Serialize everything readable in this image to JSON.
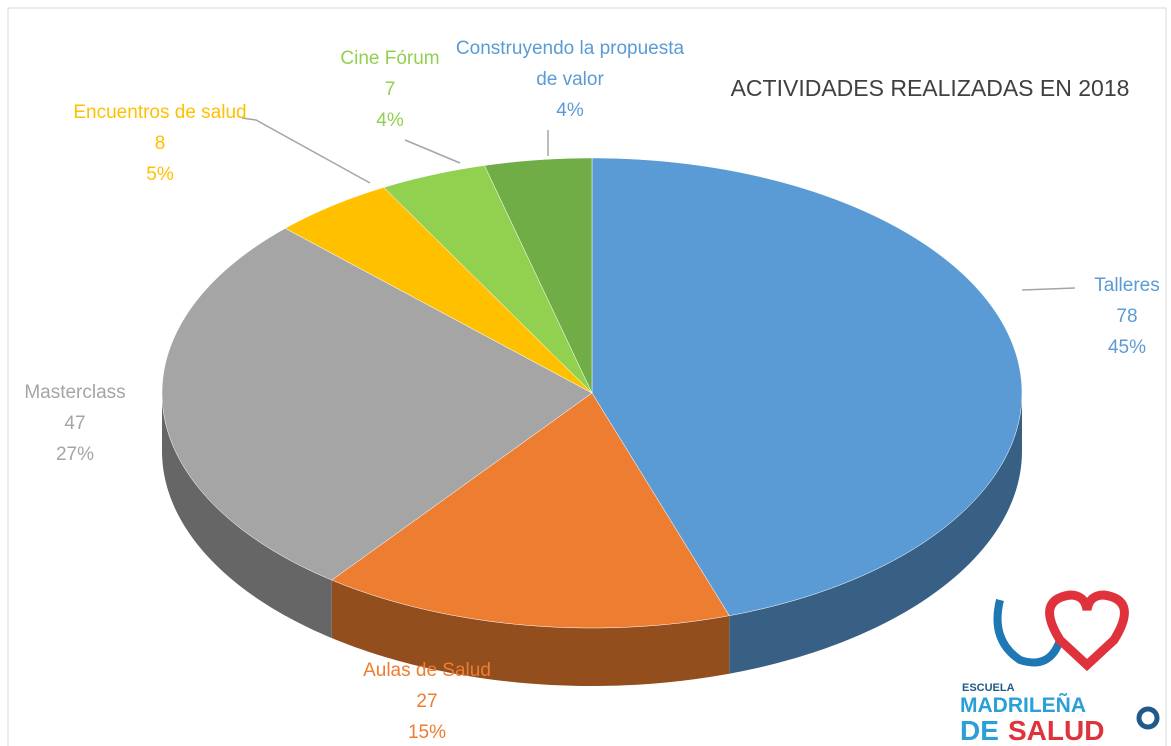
{
  "chart_data": {
    "type": "pie3d",
    "title": "ACTIVIDADES REALIZADAS EN 2018",
    "categories": [
      "Talleres",
      "Aulas de Salud",
      "Masterclass",
      "Encuentros de salud",
      "Cine Fórum",
      "Construyendo la propuesta de valor"
    ],
    "values": [
      78,
      27,
      47,
      8,
      7,
      7
    ],
    "value_labels": [
      "78",
      "27",
      "47",
      "8",
      "7",
      null
    ],
    "percent_labels": [
      "45%",
      "15%",
      "27%",
      "5%",
      "4%",
      "4%"
    ],
    "colors": [
      "#5b9bd5",
      "#ed7d31",
      "#a5a5a5",
      "#ffc000",
      "#92d050",
      "#70ad47"
    ],
    "label_colors": [
      "#5b9bd5",
      "#ed7d31",
      "#a5a5a5",
      "#ffc000",
      "#92d050",
      "#5b9bd5"
    ]
  },
  "logo": {
    "top": "ESCUELA",
    "middle": "MADRILEÑA",
    "de": "DE",
    "salud": "SALUD"
  }
}
